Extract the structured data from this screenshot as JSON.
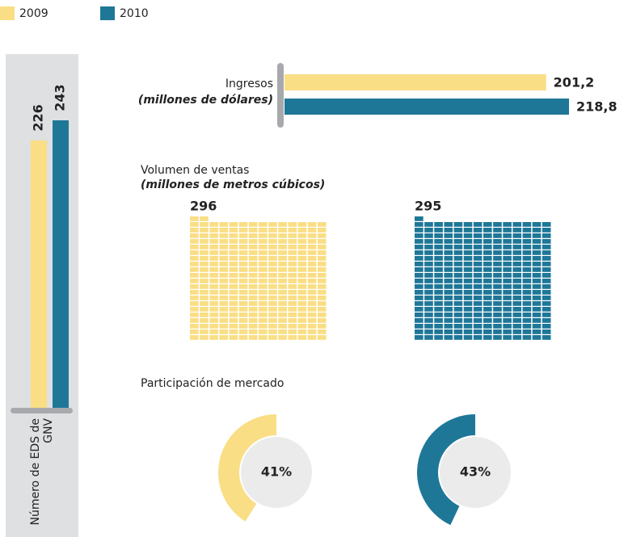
{
  "legend": [
    {
      "name": "2009",
      "color": "#f9de85"
    },
    {
      "name": "2010",
      "color": "#1f7798"
    }
  ],
  "chart_data": [
    {
      "type": "column",
      "title": "Número de EDS de GNV",
      "values": [
        226,
        243
      ]
    },
    {
      "type": "hbar",
      "title": "Ingresos",
      "subtitle": "(millones de dólares)",
      "values": [
        201.2,
        218.8
      ],
      "value_labels": [
        "201,2",
        "218,8"
      ]
    },
    {
      "type": "waffle",
      "title": "Volumen de ventas",
      "subtitle": "(millones de metros cúbicos)",
      "values": [
        296,
        295
      ]
    },
    {
      "type": "donut",
      "title": "Participación de mercado",
      "values": [
        41,
        43
      ],
      "value_labels": [
        "41%",
        "43%"
      ]
    }
  ]
}
